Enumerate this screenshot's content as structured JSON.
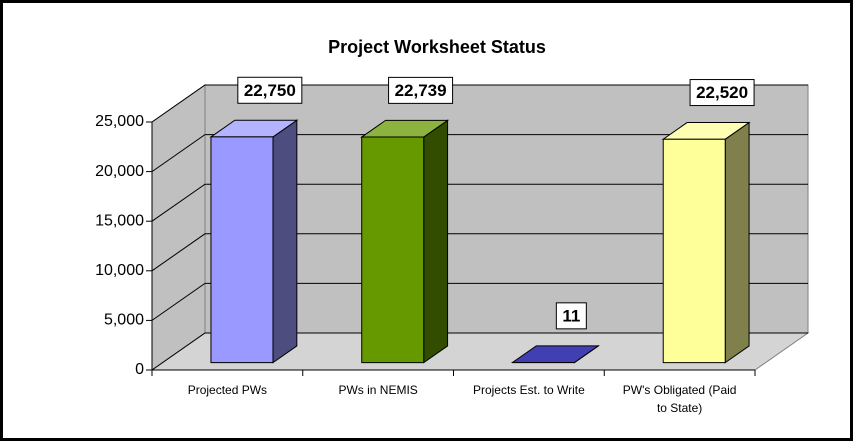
{
  "chart_data": {
    "type": "bar3d",
    "title": "Project Worksheet Status",
    "categories": [
      "Projected PWs",
      "PWs in NEMIS",
      "Projects Est. to Write",
      "PW's Obligated (Paid to State)"
    ],
    "values": [
      22750,
      22739,
      11,
      22520
    ],
    "value_labels": [
      "22,750",
      "22,739",
      "11",
      "22,520"
    ],
    "colors": [
      "#9999ff",
      "#669900",
      "#000099",
      "#ffff99"
    ],
    "ylim": [
      0,
      25000
    ],
    "yticks": [
      0,
      {
        "value": 5000,
        "label": "5,000"
      },
      {
        "value": 10000,
        "label": "10,000"
      },
      {
        "value": 15000,
        "label": "15,000"
      },
      {
        "value": 20000,
        "label": "20,000"
      },
      {
        "value": 25000,
        "label": "25,000"
      }
    ],
    "grid": true
  }
}
